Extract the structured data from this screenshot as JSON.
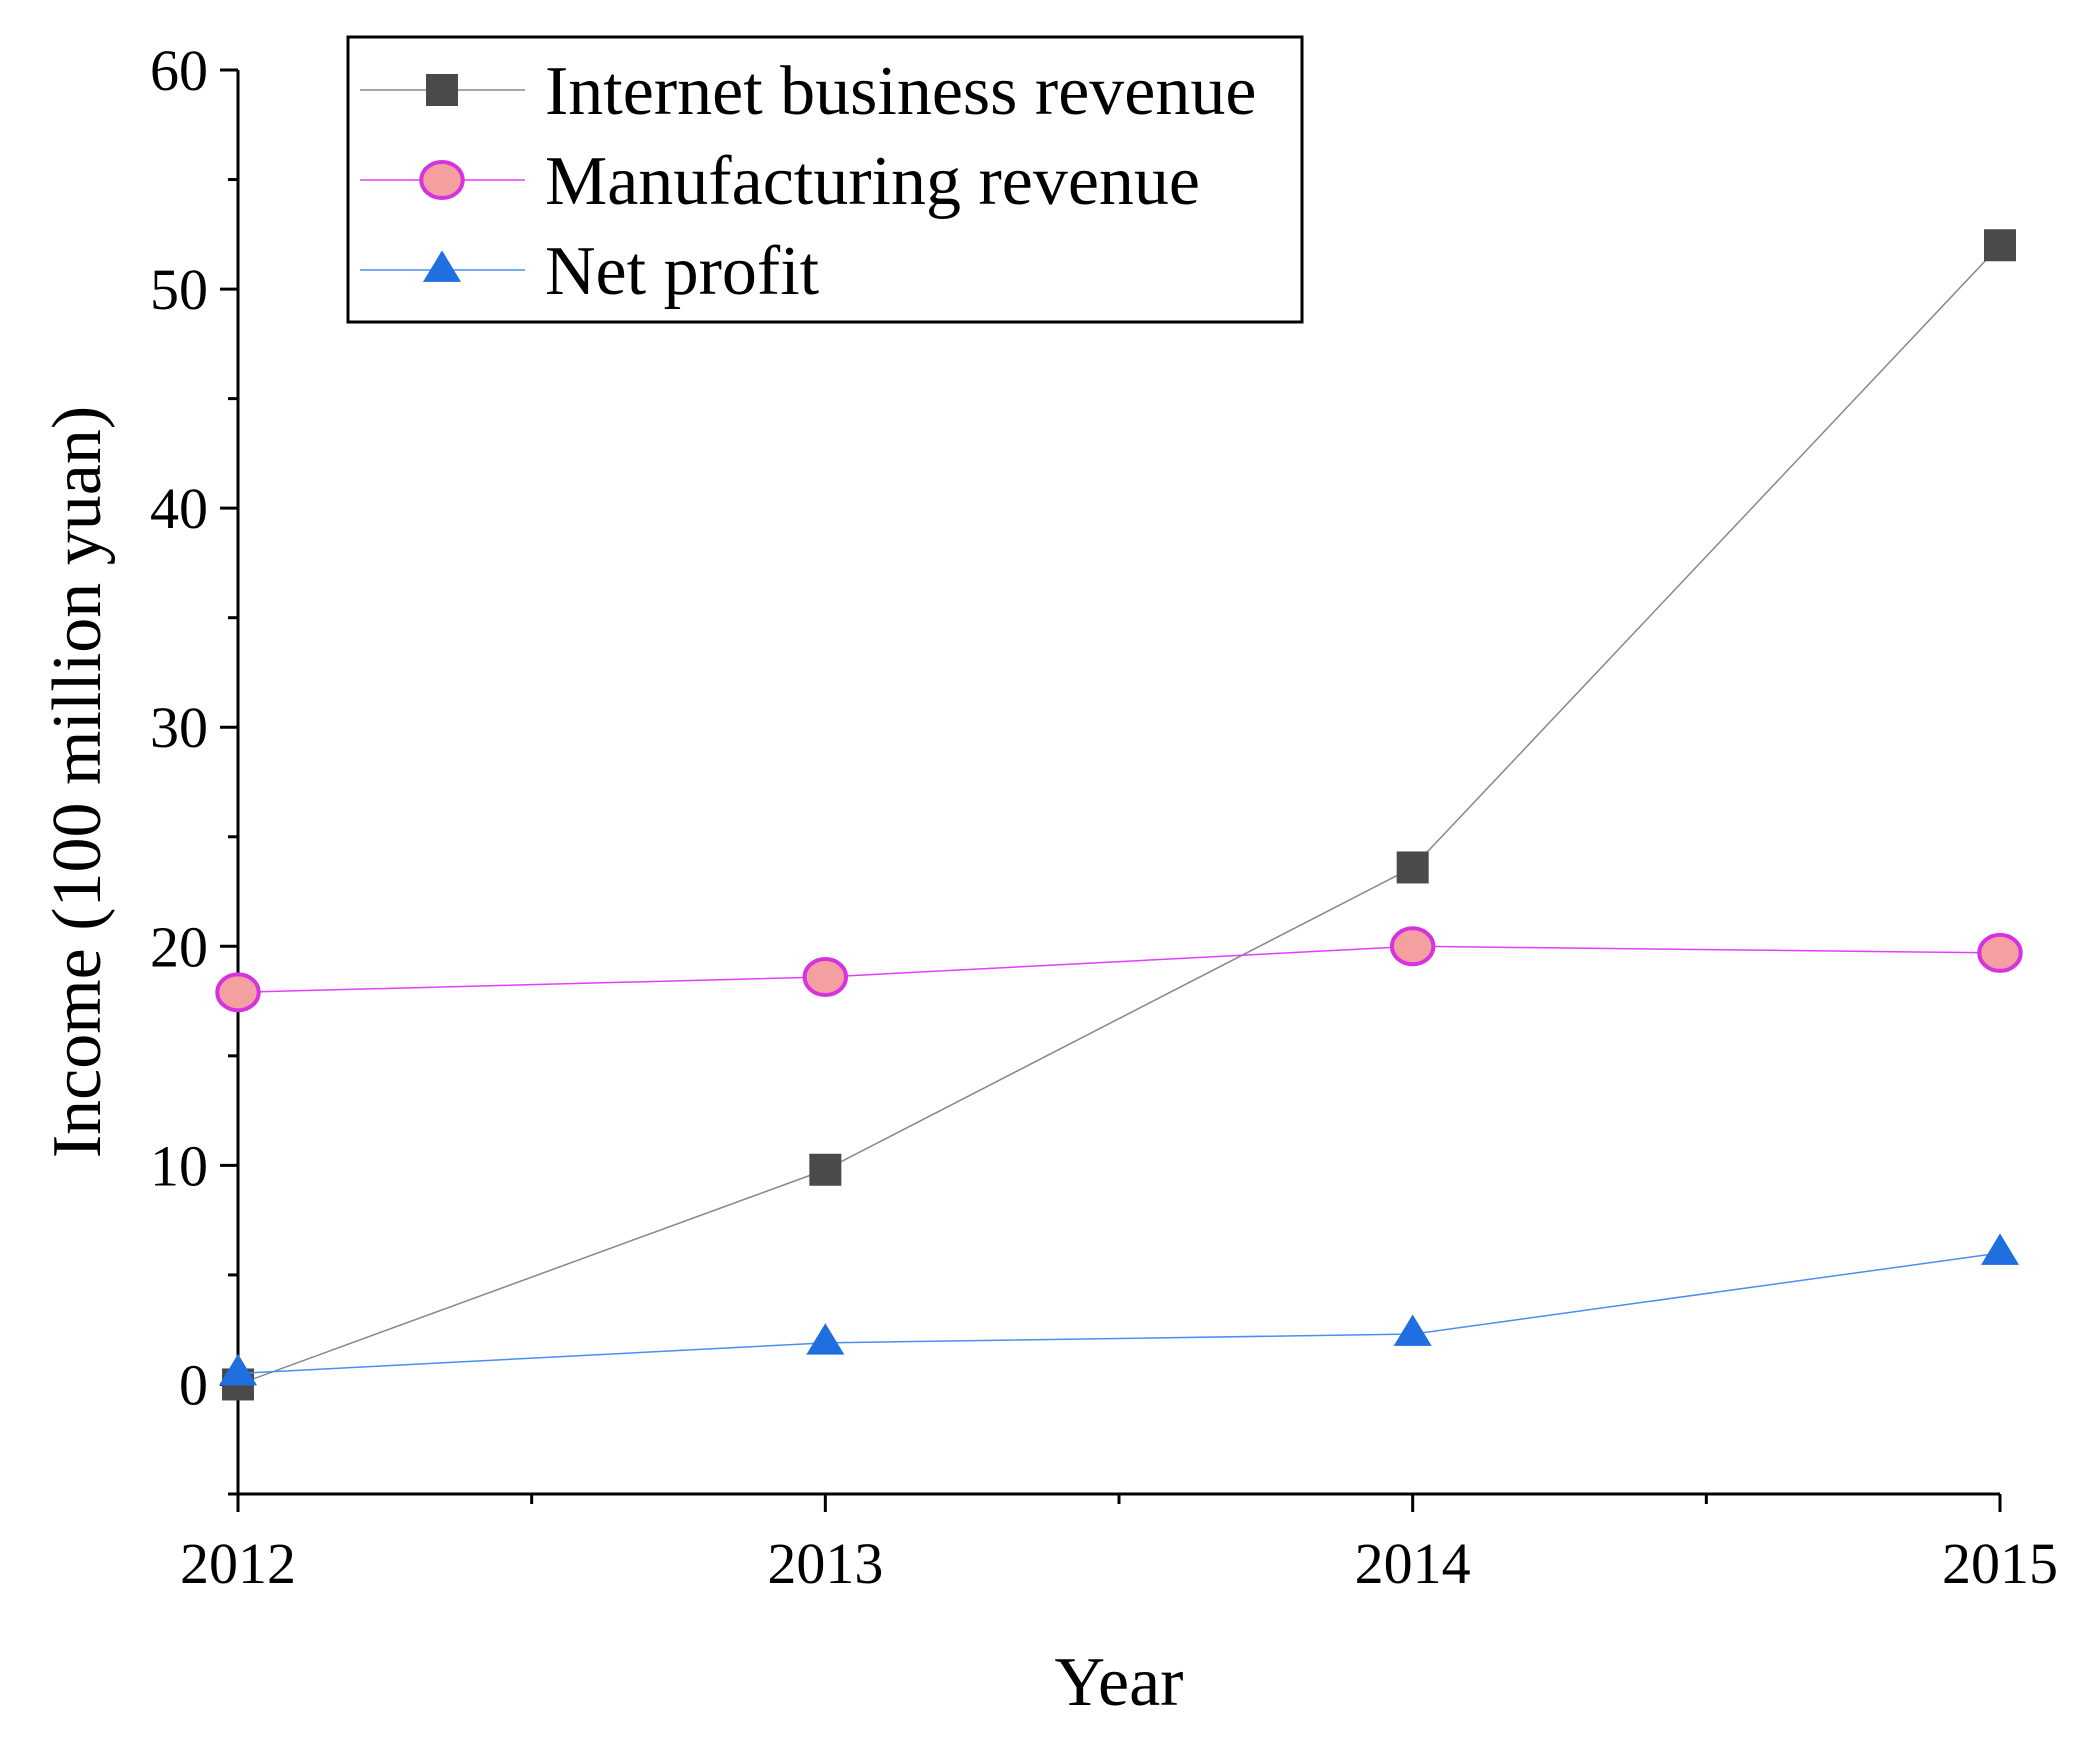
{
  "chart_data": {
    "type": "line",
    "title": "",
    "xlabel": "Year",
    "ylabel": "Income (100 million yuan)",
    "categories": [
      "2012",
      "2013",
      "2014",
      "2015"
    ],
    "x_values": [
      2012,
      2013,
      2014,
      2015
    ],
    "xlim": [
      2012,
      2015
    ],
    "ylim": [
      -5,
      60
    ],
    "y_ticks": [
      0,
      10,
      20,
      30,
      40,
      50,
      60
    ],
    "y_tick_labels": [
      "0",
      "10",
      "20",
      "30",
      "40",
      "50",
      "60"
    ],
    "grid": false,
    "legend_position": "top-left",
    "series": [
      {
        "name": "Internet business revenue",
        "values": [
          0,
          9.8,
          23.6,
          52
        ],
        "marker": "square",
        "line_color": "#888888",
        "marker_fill": "#4a4a4a",
        "marker_stroke": "#4a4a4a"
      },
      {
        "name": "Manufacturing revenue",
        "values": [
          17.9,
          18.6,
          20,
          19.7
        ],
        "marker": "circle",
        "line_color": "#e040fb",
        "marker_fill": "#f4a0a0",
        "marker_stroke": "#d633e0"
      },
      {
        "name": "Net profit",
        "values": [
          0.5,
          1.9,
          2.3,
          6
        ],
        "marker": "triangle",
        "line_color": "#4a8ef0",
        "marker_fill": "#1f6fe0",
        "marker_stroke": "#1f6fe0"
      }
    ]
  }
}
